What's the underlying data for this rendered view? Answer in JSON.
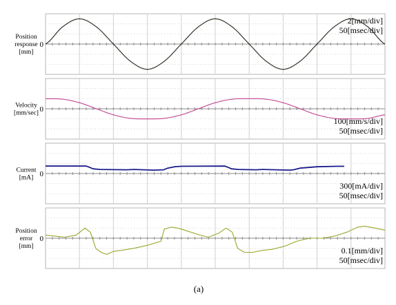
{
  "figure_caption": "(a)",
  "colors": {
    "frame": "#b4b4b4",
    "grid": "#cfcfcf",
    "axis": "#8a8a8a",
    "reference": "#6b8e23",
    "position": "#c0392b",
    "velocity": "#c0408f",
    "current": "#1a1a8c",
    "error": "#9aa52b"
  },
  "chart_data": [
    {
      "type": "line",
      "ylabel": [
        "Position",
        "response",
        "[mm]"
      ],
      "zero_label": "0",
      "scale": [
        "2[mm/div]",
        "50[msec/div]"
      ],
      "scale_position": "top-right",
      "divisions": {
        "x": 10,
        "y": 6
      },
      "xlim": [
        0,
        500
      ],
      "ylim": [
        -6,
        6
      ],
      "grid": true,
      "series": [
        {
          "role": "reference",
          "x": [
            0,
            25,
            50,
            75,
            100,
            125,
            150,
            175,
            200,
            225,
            250,
            275,
            300,
            325,
            350,
            375,
            400,
            425,
            450,
            475,
            500
          ],
          "y": [
            0.0,
            3.4,
            5.0,
            3.4,
            0.0,
            -3.4,
            -5.0,
            -3.4,
            0.0,
            3.4,
            5.0,
            3.4,
            0.0,
            -3.4,
            -5.0,
            -3.4,
            0.0,
            3.4,
            5.0,
            3.4,
            0.0
          ]
        },
        {
          "role": "response",
          "x": [
            0,
            25,
            50,
            75,
            100,
            125,
            150,
            175,
            200,
            225,
            250,
            275,
            300,
            325,
            350,
            375,
            400,
            425,
            450,
            475,
            500
          ],
          "y": [
            0.0,
            3.4,
            5.0,
            3.4,
            0.0,
            -3.4,
            -5.0,
            -3.4,
            0.0,
            3.4,
            5.0,
            3.4,
            0.0,
            -3.4,
            -5.0,
            -3.4,
            0.0,
            3.4,
            5.0,
            3.4,
            0.0
          ]
        }
      ]
    },
    {
      "type": "line",
      "ylabel": [
        "Velocity",
        "[mm/sec]"
      ],
      "zero_label": "0",
      "scale": [
        "100[mm/s/div]",
        "50[msec/div]"
      ],
      "scale_position": "bottom-right",
      "divisions": {
        "x": 10,
        "y": 6
      },
      "xlim": [
        0,
        500
      ],
      "ylim": [
        -300,
        300
      ],
      "grid": true,
      "series": [
        {
          "role": "velocity",
          "x": [
            0,
            25,
            50,
            75,
            100,
            125,
            150,
            175,
            200,
            225,
            250,
            275,
            300,
            325,
            350,
            375,
            400,
            425,
            450,
            475,
            500
          ],
          "y": [
            100,
            95,
            60,
            0,
            -60,
            -95,
            -100,
            -95,
            -60,
            0,
            60,
            95,
            100,
            95,
            60,
            0,
            -60,
            -95,
            -100,
            -95,
            -60
          ]
        }
      ]
    },
    {
      "type": "line",
      "ylabel": [
        "Current",
        "[mA]"
      ],
      "zero_label": "0",
      "scale": [
        "300[mA/div]",
        "50[msec/div]"
      ],
      "scale_position": "bottom-right",
      "divisions": {
        "x": 10,
        "y": 6
      },
      "xlim": [
        0,
        500
      ],
      "ylim": [
        -900,
        900
      ],
      "grid": true,
      "series": [
        {
          "role": "current",
          "x": [
            0,
            60,
            64,
            70,
            80,
            120,
            130,
            160,
            174,
            180,
            190,
            200,
            264,
            268,
            274,
            284,
            310,
            320,
            360,
            365,
            375,
            400,
            430,
            440
          ],
          "y": [
            220,
            220,
            190,
            140,
            120,
            110,
            120,
            100,
            110,
            160,
            200,
            215,
            220,
            190,
            140,
            120,
            110,
            120,
            100,
            110,
            160,
            200,
            215,
            215
          ]
        }
      ]
    },
    {
      "type": "line",
      "ylabel": [
        "Position",
        "error",
        "[mm]"
      ],
      "zero_label": "0",
      "scale": [
        "0.1[mm/div]",
        "50[msec/div]"
      ],
      "scale_position": "bottom-right",
      "divisions": {
        "x": 10,
        "y": 6
      },
      "xlim": [
        0,
        500
      ],
      "ylim": [
        -0.3,
        0.3
      ],
      "grid": true,
      "series": [
        {
          "role": "error",
          "x": [
            0,
            15,
            28,
            45,
            58,
            66,
            74,
            82,
            90,
            100,
            112,
            130,
            150,
            170,
            175,
            185,
            195,
            205,
            228,
            240,
            255,
            266,
            275,
            283,
            293,
            305,
            320,
            334,
            352,
            370,
            382,
            390,
            408,
            425,
            444,
            460,
            470,
            485,
            500
          ],
          "y": [
            0.03,
            0.02,
            0.01,
            0.03,
            0.1,
            0.06,
            -0.1,
            -0.14,
            -0.16,
            -0.13,
            -0.12,
            -0.1,
            -0.07,
            -0.03,
            0.09,
            0.11,
            0.1,
            0.08,
            0.03,
            0.01,
            0.05,
            0.1,
            0.06,
            -0.1,
            -0.14,
            -0.14,
            -0.12,
            -0.11,
            -0.08,
            -0.03,
            -0.01,
            0.0,
            0.0,
            0.02,
            0.06,
            0.11,
            0.12,
            0.1,
            0.08
          ]
        }
      ]
    }
  ]
}
